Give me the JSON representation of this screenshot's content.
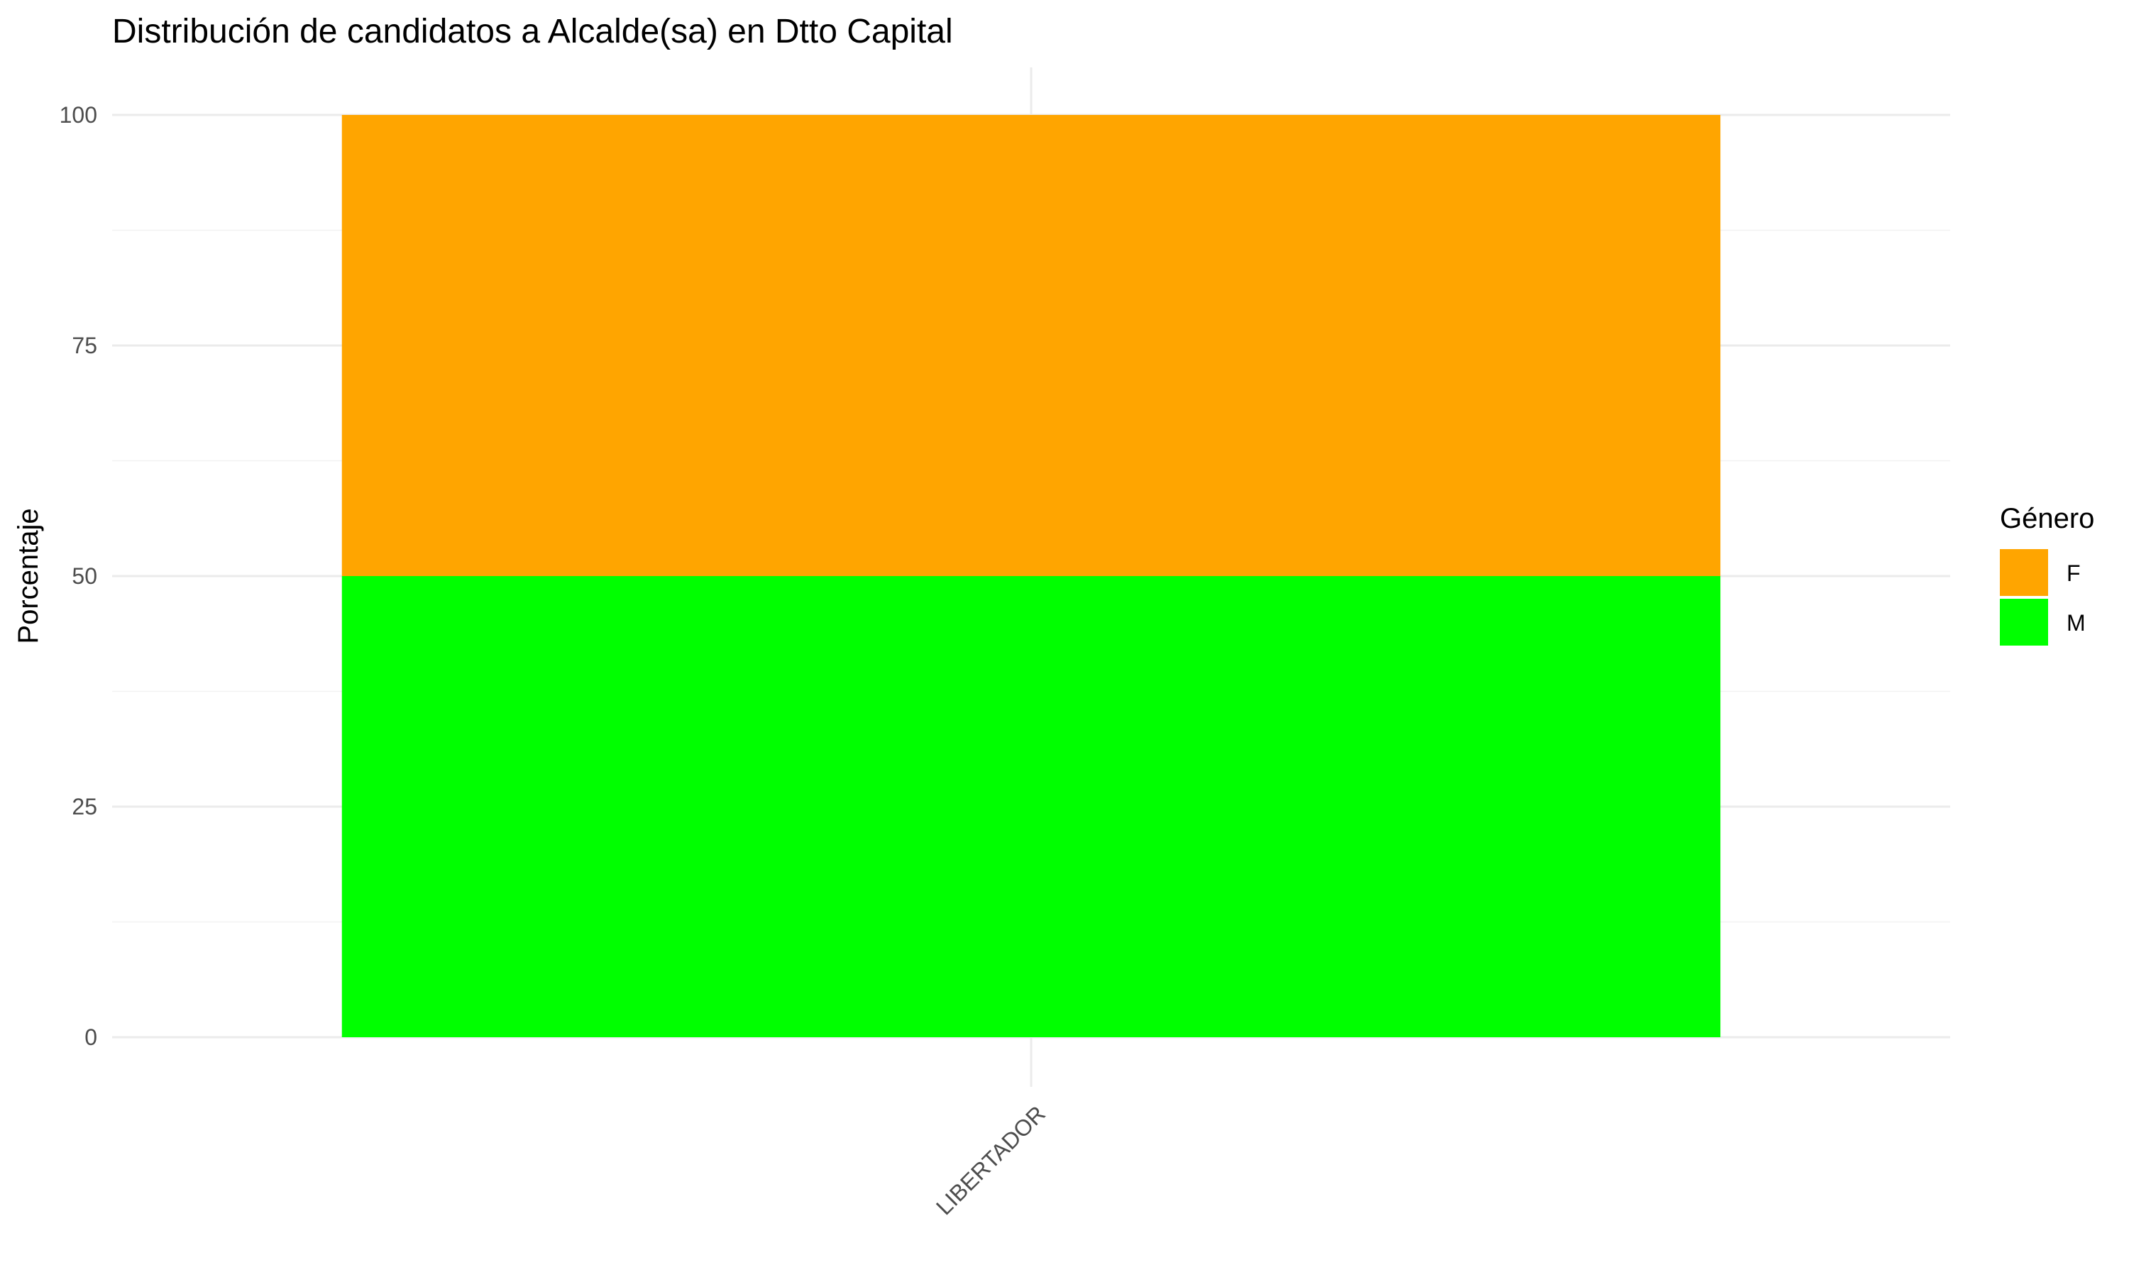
{
  "chart_data": {
    "type": "bar",
    "stacked": true,
    "title": "Distribución de candidatos a Alcalde(sa) en Dtto Capital",
    "xlabel": "",
    "ylabel": "Porcentaje",
    "categories": [
      "LIBERTADOR"
    ],
    "ylim": [
      0,
      100
    ],
    "yticks": [
      "0",
      "25",
      "50",
      "75",
      "100"
    ],
    "grid": true,
    "legend": {
      "title": "Género",
      "placement": "right"
    },
    "series": [
      {
        "name": "M",
        "values": [
          50
        ],
        "color": "#00FF00"
      },
      {
        "name": "F",
        "values": [
          50
        ],
        "color": "#FFA500"
      }
    ],
    "legend_order": [
      "F",
      "M"
    ]
  }
}
